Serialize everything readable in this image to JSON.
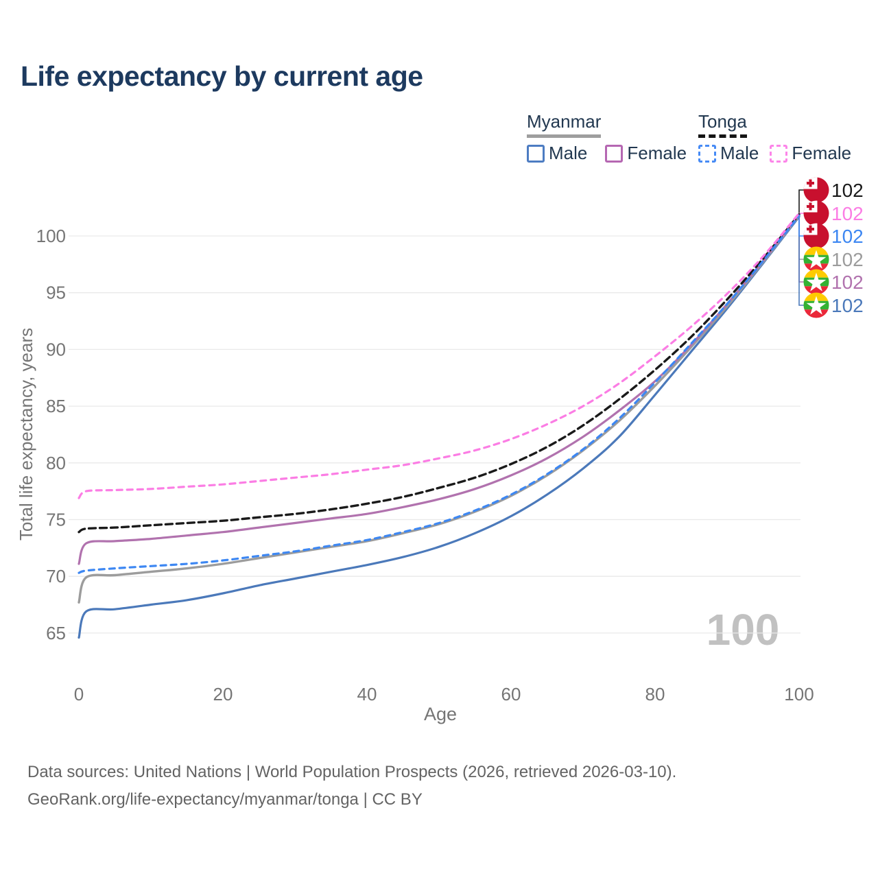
{
  "title": "Life expectancy by current age",
  "watermark_age": "100",
  "legend": {
    "groups": [
      {
        "country": "Myanmar",
        "line_style": "solid",
        "items": [
          {
            "label": "Male"
          },
          {
            "label": "Female"
          }
        ]
      },
      {
        "country": "Tonga",
        "line_style": "dashed",
        "items": [
          {
            "label": "Male"
          },
          {
            "label": "Female"
          }
        ]
      }
    ]
  },
  "footer": {
    "line1": "Data sources: United Nations | World Population Prospects (2026, retrieved 2026-03-10).",
    "line2": "GeoRank.org/life-expectancy/myanmar/tonga | CC BY"
  },
  "colors": {
    "title_text": "#1d3a5f",
    "legend_text": "#223850",
    "axis_text": "#757575",
    "gridline": "#e9e9e9",
    "footer_text": "#636363",
    "watermark": "#c1c1c1",
    "myanmar_male": "#4b79ba",
    "myanmar_female": "#b172ae",
    "myanmar_both": "#9c9c9c",
    "tonga_male": "#3d87f2",
    "tonga_female": "#fb7de4",
    "tonga_both": "#1a1a1a",
    "tonga_flag_red": "#c8102e",
    "myanmar_flag_yellow": "#fecb00",
    "myanmar_flag_green": "#34b233",
    "myanmar_flag_red": "#ea2839"
  },
  "chart_data": {
    "type": "line",
    "title": "Life expectancy by current age",
    "xlabel": "Age",
    "ylabel": "Total life expectancy, years",
    "xlim": [
      0,
      100
    ],
    "ylim": [
      63,
      103
    ],
    "xticks": [
      0,
      20,
      40,
      60,
      80,
      100
    ],
    "yticks": [
      65,
      70,
      75,
      80,
      85,
      90,
      95,
      100
    ],
    "grid": "horizontal-only",
    "legend_position": "top-right",
    "ages": [
      0,
      1,
      5,
      10,
      15,
      20,
      25,
      30,
      35,
      40,
      45,
      50,
      55,
      60,
      65,
      70,
      75,
      80,
      85,
      90,
      95,
      100
    ],
    "series": [
      {
        "name": "Myanmar Male",
        "country": "Myanmar",
        "sex": "male",
        "style": "solid",
        "color": "#4b79ba",
        "width": 3.2,
        "dash": null,
        "label_row": 5,
        "end_label": "102",
        "values": [
          64.6,
          66.9,
          67.1,
          67.5,
          67.9,
          68.5,
          69.2,
          69.8,
          70.4,
          71.0,
          71.7,
          72.6,
          73.8,
          75.3,
          77.2,
          79.5,
          82.3,
          86.0,
          89.8,
          93.6,
          97.6,
          101.7
        ]
      },
      {
        "name": "Myanmar Both sexes",
        "country": "Myanmar",
        "sex": "both",
        "style": "solid",
        "color": "#9c9c9c",
        "width": 3.4,
        "dash": null,
        "label_row": 3,
        "end_label": "102",
        "values": [
          67.7,
          69.9,
          70.1,
          70.4,
          70.7,
          71.1,
          71.6,
          72.1,
          72.6,
          73.1,
          73.8,
          74.6,
          75.7,
          77.1,
          78.9,
          81.1,
          83.7,
          86.8,
          90.2,
          93.8,
          97.7,
          101.8
        ]
      },
      {
        "name": "Myanmar Female",
        "country": "Myanmar",
        "sex": "female",
        "style": "solid",
        "color": "#b172ae",
        "width": 3.2,
        "dash": null,
        "label_row": 4,
        "end_label": "102",
        "values": [
          71.1,
          72.9,
          73.1,
          73.3,
          73.6,
          73.9,
          74.3,
          74.7,
          75.1,
          75.5,
          76.1,
          76.8,
          77.7,
          78.9,
          80.4,
          82.3,
          84.6,
          87.2,
          90.4,
          94.0,
          97.8,
          101.9
        ]
      },
      {
        "name": "Tonga Both sexes",
        "country": "Tonga",
        "sex": "both",
        "style": "dashed",
        "color": "#1a1a1a",
        "width": 3.4,
        "dash": "10 6",
        "label_row": 0,
        "end_label": "102",
        "values": [
          73.9,
          74.2,
          74.3,
          74.5,
          74.7,
          74.9,
          75.2,
          75.5,
          75.9,
          76.4,
          77.0,
          77.8,
          78.7,
          79.9,
          81.4,
          83.3,
          85.6,
          88.2,
          91.1,
          94.4,
          98.0,
          101.9
        ]
      },
      {
        "name": "Tonga Male",
        "country": "Tonga",
        "sex": "male",
        "style": "dashed",
        "color": "#3d87f2",
        "width": 3.2,
        "dash": "8 7",
        "label_row": 2,
        "end_label": "102",
        "values": [
          70.3,
          70.5,
          70.7,
          70.9,
          71.1,
          71.4,
          71.8,
          72.2,
          72.7,
          73.2,
          73.9,
          74.7,
          75.8,
          77.2,
          79.0,
          81.2,
          83.9,
          87.1,
          90.5,
          94.0,
          97.8,
          101.8
        ]
      },
      {
        "name": "Tonga Female",
        "country": "Tonga",
        "sex": "female",
        "style": "dashed",
        "color": "#fb7de4",
        "width": 3.2,
        "dash": "8 7",
        "label_row": 1,
        "end_label": "102",
        "values": [
          76.9,
          77.5,
          77.6,
          77.7,
          77.9,
          78.1,
          78.4,
          78.7,
          79.0,
          79.4,
          79.8,
          80.4,
          81.1,
          82.1,
          83.4,
          85.0,
          87.0,
          89.4,
          92.0,
          94.9,
          98.2,
          102.0
        ]
      }
    ],
    "label_rows": [
      {
        "row": 0,
        "series": "Tonga Both sexes",
        "flag": "tonga",
        "label": "102",
        "label_color": "#1a1a1a"
      },
      {
        "row": 1,
        "series": "Tonga Female",
        "flag": "tonga",
        "label": "102",
        "label_color": "#fb7de4"
      },
      {
        "row": 2,
        "series": "Tonga Male",
        "flag": "tonga",
        "label": "102",
        "label_color": "#3d87f2"
      },
      {
        "row": 3,
        "series": "Myanmar Both sexes",
        "flag": "myanmar",
        "label": "102",
        "label_color": "#9c9c9c"
      },
      {
        "row": 4,
        "series": "Myanmar Female",
        "flag": "myanmar",
        "label": "102",
        "label_color": "#b172ae"
      },
      {
        "row": 5,
        "series": "Myanmar Male",
        "flag": "myanmar",
        "label": "102",
        "label_color": "#4b79ba"
      }
    ]
  }
}
